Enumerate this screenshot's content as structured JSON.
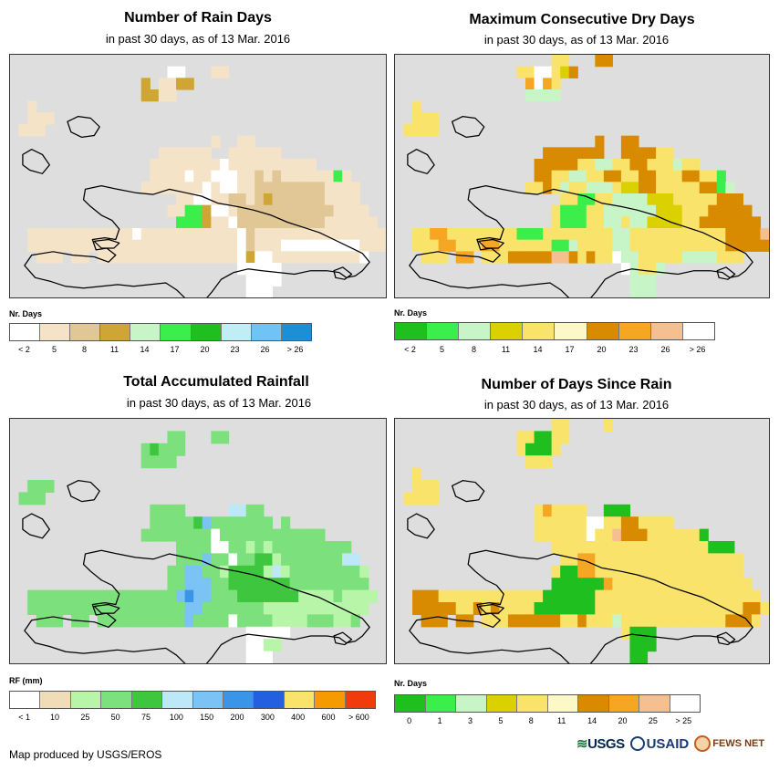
{
  "panels": [
    {
      "id": "rain-days",
      "title": "Number of Rain Days",
      "subtitle": "in past 30 days, as of 13 Mar. 2016",
      "legend_title": "Nr. Days",
      "legend_colors": [
        "#ffffff",
        "#f5e3c8",
        "#e0c795",
        "#cfa536",
        "#c8f5c8",
        "#3cee4b",
        "#1fbf1f",
        "#bfeef5",
        "#6fc3f5",
        "#1c8fd6"
      ],
      "legend_ticks": [
        "< 2",
        "5",
        "8",
        "11",
        "14",
        "17",
        "20",
        "23",
        "26",
        "> 26"
      ],
      "grid": [
        "..........................................",
        "..................WW...LL..................",
        "...............A.LLAA......................",
        "...............AALL........................",
        "..L........................................",
        "..LLL......................................",
        ".LLL.......................................",
        ".......................L..LL...............",
        ".................LLLLLL..LLLLLL............",
        "................LLLLLLLLWLLLLLLLLLL........",
        "................LLLLWLLWWWLLMLMLLLLLLGL....",
        "...............LLLLLLLWLWWLLMMMMMMMMLLLL...",
        "...................LLWWLLMMLMAMMMMMMLLLL...",
        "..................LLGGAWWLMMMMMMMMMMMLLLL..",
        "...................GGGALLWMMMMMMMMMMLLLLLL.",
        "..LLLLLLLLLLLLWLLLLLLLLLLLWMLLLLLLLLLLLLLLL",
        "..LLLLLLLLLLLLLLLLLLLLLLLLWMLLLWWWWWWWWWLLL",
        "...LLL.LL.LLLLLLLLLLLLLLLLWAWWLLLLLLLLLLW..",
        "..........................WWWWW............",
        "...........................WWWW............",
        "...........................WWW............."
      ],
      "palette": {
        "W": "#ffffff",
        "L": "#f5e3c8",
        "M": "#e0c795",
        "A": "#cfa536",
        "G": "#3cee4b"
      }
    },
    {
      "id": "max-dry-days",
      "title": "Maximum Consecutive Dry Days",
      "subtitle": "in past 30 days, as of 13 Mar. 2016",
      "legend_title": "Nr. Days",
      "legend_colors": [
        "#1fbf1f",
        "#3cee4b",
        "#c8f5c8",
        "#dcd100",
        "#fae36a",
        "#fdf8c8",
        "#d98b00",
        "#f5a623",
        "#f5bf8f",
        "#ffffff"
      ],
      "legend_ticks": [
        "< 2",
        "5",
        "8",
        "11",
        "14",
        "17",
        "20",
        "23",
        "26",
        "> 26"
      ],
      "grid": [
        "..................YY...OO..................",
        "..............YYWWYHO......................",
        "...............PWPY........................",
        "...............LLLL........................",
        "..Y........................................",
        "..YYY......................................",
        ".YYYY......................................",
        ".......................O..DD...............",
        ".................DDODDDO..ODDDYY...........",
        "................DDDDDYYLLYYOOYYYLYY........",
        "................DDYYLLYYOOYYOOYYYOOYYG.....",
        "...............YYDYLYYLLLYHHOOYYYYYDDGL....",
        "...................YYGGYYLLLLHHHYYYYYDDD...",
        "..................YGGGYYLLLLLLHHHYYYDDDDO..",
        "..................YGGGYYLLYLLHHHHYYDDDDDDO.",
        "..YYPPYYYYYYYYGGGYYYYYYYYLLYYYYYYYYYYYOOODS",
        "..YYYPPYYYPPYYYYYYGGLYYYYLLYYYYYYYYYYYOOODD",
        "...YYY.PP.YYYOOOOOSSOYOYYWLLYYYYYLLLLYYY...",
        "..........................WLYYL............",
        "...........................LLL.............",
        "...........................LLL............."
      ],
      "palette": {
        "Y": "#fae36a",
        "H": "#dcd100",
        "W": "#ffffff",
        "O": "#d98b00",
        "P": "#f5a623",
        "L": "#c8f5c8",
        "G": "#3cee4b",
        "D": "#d98b00",
        "S": "#f5bf8f"
      }
    },
    {
      "id": "total-rainfall",
      "title": "Total Accumulated Rainfall",
      "subtitle": "in past 30 days, as of 13 Mar. 2016",
      "legend_title": "RF (mm)",
      "legend_colors": [
        "#ffffff",
        "#f0dcb6",
        "#b7f5a8",
        "#7ce07c",
        "#3ec73e",
        "#bde8f7",
        "#7cc3f5",
        "#3a95e8",
        "#2260e0",
        "#fae36a",
        "#f59a00",
        "#f03c0c"
      ],
      "legend_ticks": [
        "< 1",
        "10",
        "25",
        "50",
        "75",
        "100",
        "150",
        "200",
        "300",
        "400",
        "600",
        "> 600"
      ],
      "grid": [
        "..........................................",
        "..................GG...GG..................",
        "...............GDGGG.......................",
        "...............GGGG........................",
        "..........................................",
        "..GGG......................................",
        ".GGG.......................................",
        "................GGGG.....CCGG..............",
        "................GGGGGDBGGGGGGG.G...........",
        "...............GGGGGGGGWGGGGGGGGGGGG.......",
        "...................GGGGWWGGLGLGGGGGGGGG....",
        "...................GGGBGGWGGDDLGGGGGGGCC...",
        "..................GGBBGGLDDDDLCLGGGGGGGGL..",
        "..................GGBBBGGDDDDDDDGGGGGGGGG..",
        "..GGGGGGGGGGGGGGGGGBNBBGGGDDDDDDDLLLLGLLLL.",
        "..GGGGGGGGGGGGGGGGGGBBGGGGGGGLLLLLLLLLLLL..",
        "...GGG.GG.GGGGGGGGGGBGGGGWGGGGLLLLGGGLLG...",
        "...........................WWWWW...........",
        "...........................WWLL............",
        "...........................WWW............."
      ],
      "palette": {
        "G": "#7ce07c",
        "D": "#3ec73e",
        "B": "#7cc3f5",
        "N": "#3a95e8",
        "C": "#bde8f7",
        "W": "#ffffff",
        "L": "#b7f5a8"
      }
    },
    {
      "id": "days-since-rain",
      "title": "Number of Days Since Rain",
      "subtitle": "in past 30 days, as of 13 Mar. 2016",
      "legend_title": "Nr. Days",
      "legend_colors": [
        "#1fbf1f",
        "#3cee4b",
        "#c8f5c8",
        "#dcd100",
        "#fae36a",
        "#fdf8c8",
        "#d98b00",
        "#f5a623",
        "#f5bf8f",
        "#ffffff"
      ],
      "legend_ticks": [
        "0",
        "1",
        "3",
        "5",
        "8",
        "11",
        "14",
        "20",
        "25",
        "> 25"
      ],
      "grid": [
        "..................YY....Y..................",
        "..............YYGGYY.......................",
        "..............YGGGY........................",
        "...............YYY.........................",
        "..Y........................................",
        "..YYY......................................",
        ".YYYY......................................",
        "................YPYYYY..GGG................",
        "................YYYYYYWWYYOOYYYY...........",
        "................YYYYYYWYYSOOOYYYYYYG.......",
        "..................YYYYYYYYYYYYYYYYYYGGG....",
        "...................YYPPYYYYYYYYYYYYYYYYY...",
        "..................YGGPPYYYYYYYYYYYYYYYYY...",
        "..................GGGGGGPYYYYYYYYYYYYYYYY..",
        "..OOOYYYYYYYYYYYYGGGGGGYYYYYYYYYYYYYYYYYYY.",
        "..OOOOOYYOYOYYYYGGGGGGGYYYYYYYYYYYYYYYYYOOY",
        "...OOO.OO.YYYOOOOOOYYOYYYLYYYYYYYYYYYYOOOY.",
        "..........................YGGG.............",
        "...........................GGG.............",
        "...........................GG.............."
      ],
      "palette": {
        "Y": "#fae36a",
        "G": "#1fbf1f",
        "P": "#f5a623",
        "O": "#d98b00",
        "S": "#f5bf8f",
        "W": "#ffffff",
        "L": "#c8f5c8"
      }
    }
  ],
  "credit": "Map produced by USGS/EROS",
  "logos": {
    "usgs": "USGS",
    "usaid": "USAID",
    "fews": "FEWS NET"
  }
}
